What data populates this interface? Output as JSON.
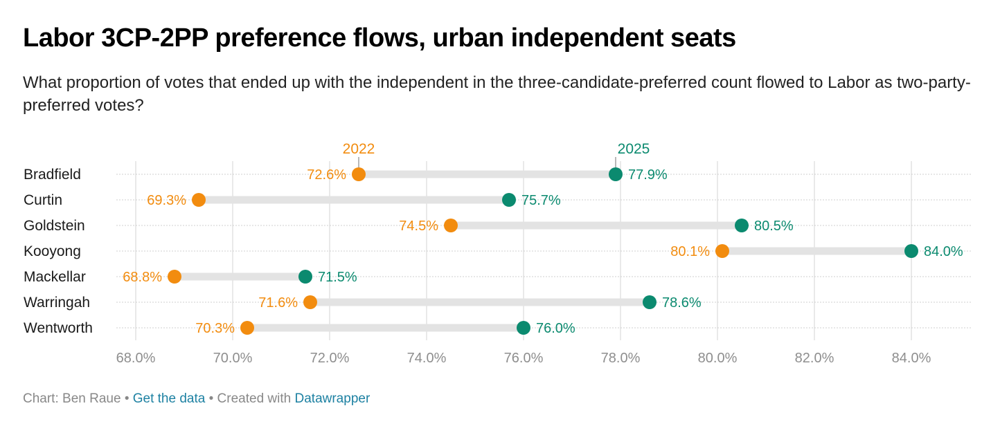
{
  "title": "Labor 3CP-2PP preference flows, urban independent seats",
  "subtitle": "What proportion of votes that ended up with the independent in the three-candidate-preferred count flowed to Labor as two-party-preferred votes?",
  "footer": {
    "credit": "Chart: Ben Raue",
    "separator": "•",
    "get_data": "Get the data",
    "created_with": "Created with",
    "tool": "Datawrapper"
  },
  "colors": {
    "y2022": "#f28c0f",
    "y2025": "#0b8a6f",
    "range": "#e3e3e3",
    "axis_text": "#8e8e8e"
  },
  "chart_data": {
    "type": "dot-range",
    "title": "Labor 3CP-2PP preference flows, urban independent seats",
    "xlabel": "",
    "ylabel": "",
    "xlim": [
      68,
      85
    ],
    "x_ticks": [
      68,
      70,
      72,
      74,
      76,
      78,
      80,
      82,
      84
    ],
    "x_tick_labels": [
      "68.0%",
      "70.0%",
      "72.0%",
      "74.0%",
      "76.0%",
      "78.0%",
      "80.0%",
      "82.0%",
      "84.0%"
    ],
    "grid": true,
    "legend": "inline-top",
    "categories": [
      "Bradfield",
      "Curtin",
      "Goldstein",
      "Kooyong",
      "Mackellar",
      "Warringah",
      "Wentworth"
    ],
    "series": [
      {
        "name": "2022",
        "values": [
          72.6,
          69.3,
          74.5,
          80.1,
          68.8,
          71.6,
          70.3
        ],
        "labels": [
          "72.6%",
          "69.3%",
          "74.5%",
          "80.1%",
          "68.8%",
          "71.6%",
          "70.3%"
        ]
      },
      {
        "name": "2025",
        "values": [
          77.9,
          75.7,
          80.5,
          84.0,
          71.5,
          78.6,
          76.0
        ],
        "labels": [
          "77.9%",
          "75.7%",
          "80.5%",
          "84.0%",
          "71.5%",
          "78.6%",
          "76.0%"
        ]
      }
    ]
  }
}
